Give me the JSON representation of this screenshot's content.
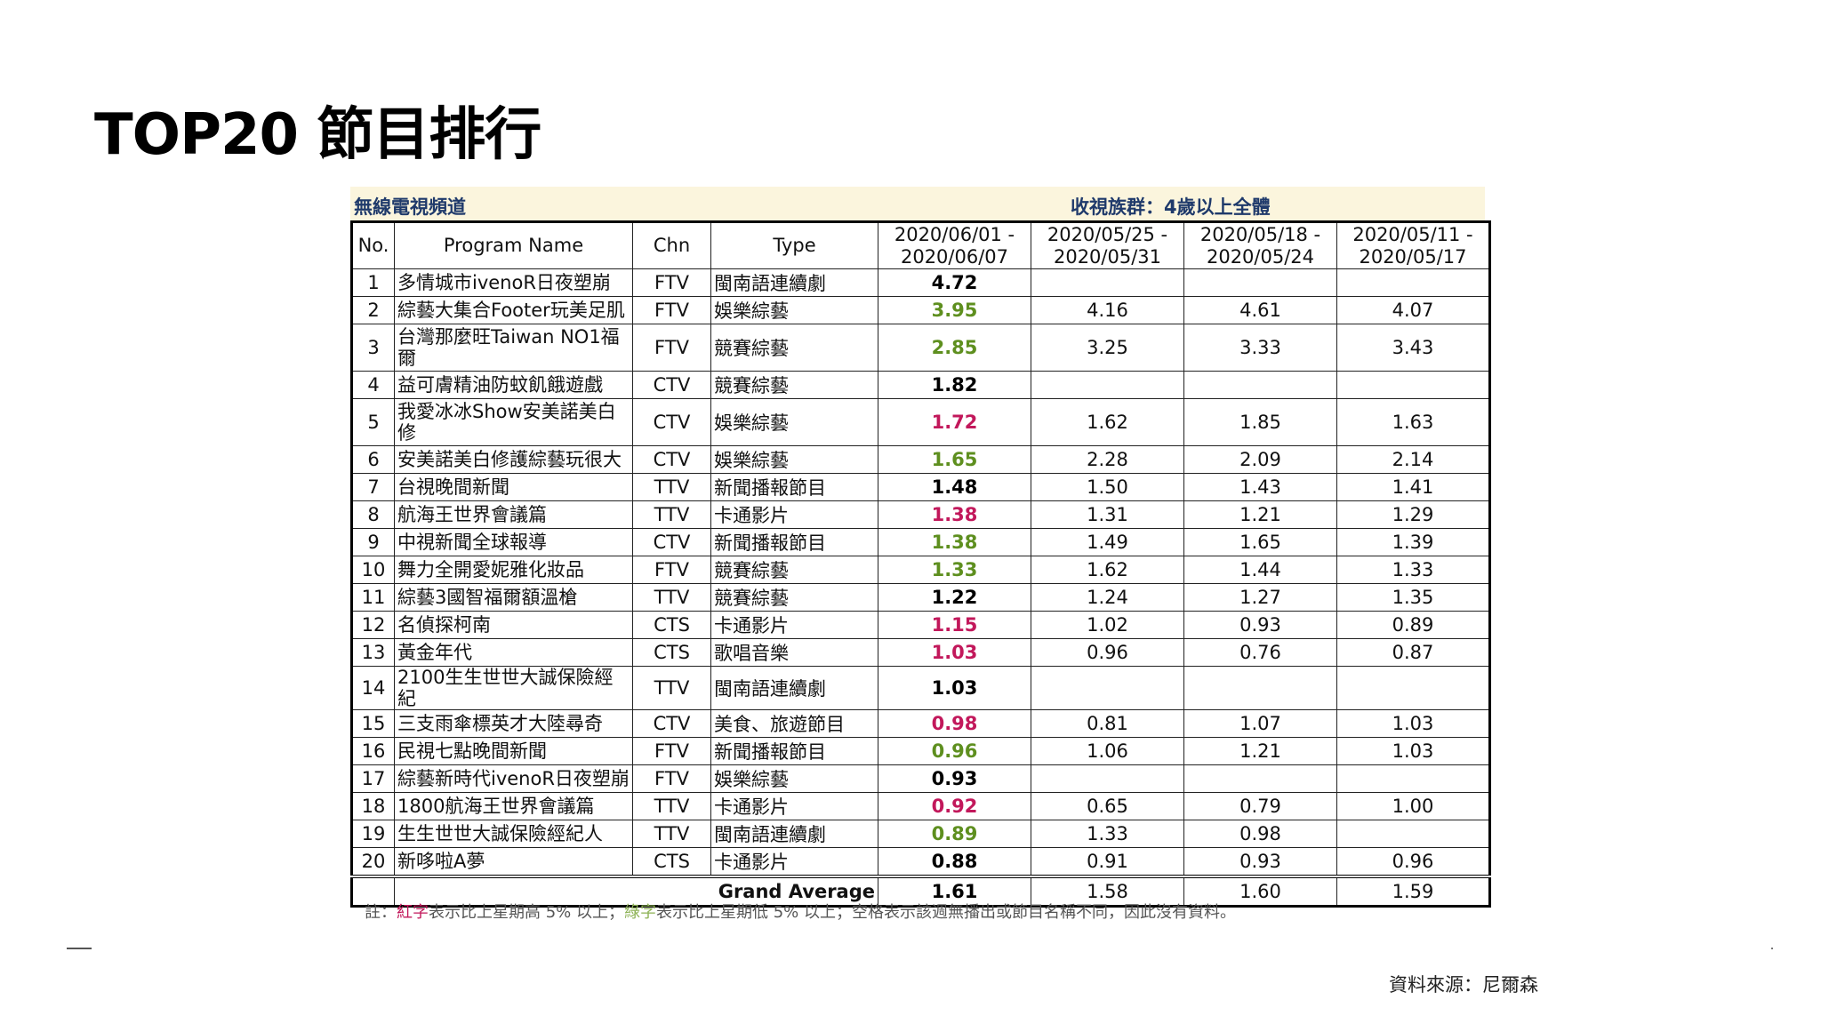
{
  "title": "TOP20 節目排行",
  "band": {
    "left": "無線電視頻道",
    "right": "收視族群：4歲以上全體"
  },
  "headers": {
    "no": "No.",
    "program": "Program Name",
    "chn": "Chn",
    "type": "Type",
    "w1": "2020/06/01 - 2020/06/07",
    "w2": "2020/05/25 - 2020/05/31",
    "w3": "2020/05/18 - 2020/05/24",
    "w4": "2020/05/11 - 2020/05/17"
  },
  "rows": [
    {
      "no": "1",
      "name": "多情城市ivenoR日夜塑崩",
      "chn": "FTV",
      "type": "閩南語連續劇",
      "w1": "4.72",
      "w1color": "black",
      "w2": "",
      "w3": "",
      "w4": ""
    },
    {
      "no": "2",
      "name": "綜藝大集合Footer玩美足肌",
      "chn": "FTV",
      "type": "娛樂綜藝",
      "w1": "3.95",
      "w1color": "green",
      "w2": "4.16",
      "w3": "4.61",
      "w4": "4.07"
    },
    {
      "no": "3",
      "name": "台灣那麼旺Taiwan NO1福爾",
      "chn": "FTV",
      "type": "競賽綜藝",
      "w1": "2.85",
      "w1color": "green",
      "w2": "3.25",
      "w3": "3.33",
      "w4": "3.43",
      "tall": true
    },
    {
      "no": "4",
      "name": "益可膚精油防蚊飢餓遊戲",
      "chn": "CTV",
      "type": "競賽綜藝",
      "w1": "1.82",
      "w1color": "black",
      "w2": "",
      "w3": "",
      "w4": ""
    },
    {
      "no": "5",
      "name": "我愛冰冰Show安美諾美白修",
      "chn": "CTV",
      "type": "娛樂綜藝",
      "w1": "1.72",
      "w1color": "red",
      "w2": "1.62",
      "w3": "1.85",
      "w4": "1.63",
      "tall": true
    },
    {
      "no": "6",
      "name": "安美諾美白修護綜藝玩很大",
      "chn": "CTV",
      "type": "娛樂綜藝",
      "w1": "1.65",
      "w1color": "green",
      "w2": "2.28",
      "w3": "2.09",
      "w4": "2.14"
    },
    {
      "no": "7",
      "name": "台視晚間新聞",
      "chn": "TTV",
      "type": "新聞播報節目",
      "w1": "1.48",
      "w1color": "black",
      "w2": "1.50",
      "w3": "1.43",
      "w4": "1.41"
    },
    {
      "no": "8",
      "name": "航海王世界會議篇",
      "chn": "TTV",
      "type": "卡通影片",
      "w1": "1.38",
      "w1color": "red",
      "w2": "1.31",
      "w3": "1.21",
      "w4": "1.29"
    },
    {
      "no": "9",
      "name": "中視新聞全球報導",
      "chn": "CTV",
      "type": "新聞播報節目",
      "w1": "1.38",
      "w1color": "green",
      "w2": "1.49",
      "w3": "1.65",
      "w4": "1.39"
    },
    {
      "no": "10",
      "name": "舞力全開愛妮雅化妝品",
      "chn": "FTV",
      "type": "競賽綜藝",
      "w1": "1.33",
      "w1color": "green",
      "w2": "1.62",
      "w3": "1.44",
      "w4": "1.33"
    },
    {
      "no": "11",
      "name": "綜藝3國智福爾額溫槍",
      "chn": "TTV",
      "type": "競賽綜藝",
      "w1": "1.22",
      "w1color": "black",
      "w2": "1.24",
      "w3": "1.27",
      "w4": "1.35"
    },
    {
      "no": "12",
      "name": "名偵探柯南",
      "chn": "CTS",
      "type": "卡通影片",
      "w1": "1.15",
      "w1color": "red",
      "w2": "1.02",
      "w3": "0.93",
      "w4": "0.89"
    },
    {
      "no": "13",
      "name": "黃金年代",
      "chn": "CTS",
      "type": "歌唱音樂",
      "w1": "1.03",
      "w1color": "red",
      "w2": "0.96",
      "w3": "0.76",
      "w4": "0.87"
    },
    {
      "no": "14",
      "name": "2100生生世世大誠保險經紀",
      "chn": "TTV",
      "type": "閩南語連續劇",
      "w1": "1.03",
      "w1color": "black",
      "w2": "",
      "w3": "",
      "w4": ""
    },
    {
      "no": "15",
      "name": "三支雨傘標英才大陸尋奇",
      "chn": "CTV",
      "type": "美食、旅遊節目",
      "w1": "0.98",
      "w1color": "red",
      "w2": "0.81",
      "w3": "1.07",
      "w4": "1.03"
    },
    {
      "no": "16",
      "name": "民視七點晚間新聞",
      "chn": "FTV",
      "type": "新聞播報節目",
      "w1": "0.96",
      "w1color": "green",
      "w2": "1.06",
      "w3": "1.21",
      "w4": "1.03"
    },
    {
      "no": "17",
      "name": "綜藝新時代ivenoR日夜塑崩",
      "chn": "FTV",
      "type": "娛樂綜藝",
      "w1": "0.93",
      "w1color": "black",
      "w2": "",
      "w3": "",
      "w4": ""
    },
    {
      "no": "18",
      "name": "1800航海王世界會議篇",
      "chn": "TTV",
      "type": "卡通影片",
      "w1": "0.92",
      "w1color": "red",
      "w2": "0.65",
      "w3": "0.79",
      "w4": "1.00"
    },
    {
      "no": "19",
      "name": "生生世世大誠保險經紀人",
      "chn": "TTV",
      "type": "閩南語連續劇",
      "w1": "0.89",
      "w1color": "green",
      "w2": "1.33",
      "w3": "0.98",
      "w4": ""
    },
    {
      "no": "20",
      "name": "新哆啦A夢",
      "chn": "CTS",
      "type": "卡通影片",
      "w1": "0.88",
      "w1color": "black",
      "w2": "0.91",
      "w3": "0.93",
      "w4": "0.96"
    }
  ],
  "grand_average": {
    "label": "Grand Average",
    "w1": "1.61",
    "w2": "1.58",
    "w3": "1.60",
    "w4": "1.59"
  },
  "note": {
    "prefix": "註：",
    "red_word": "紅字",
    "red_text": "表示比上星期高 5% 以上；",
    "green_word": "綠字",
    "green_text": "表示比上星期低 5% 以上；空格表示該週無播出或節目名稱不同，因此沒有資料。"
  },
  "source": "資料來源：尼爾森"
}
